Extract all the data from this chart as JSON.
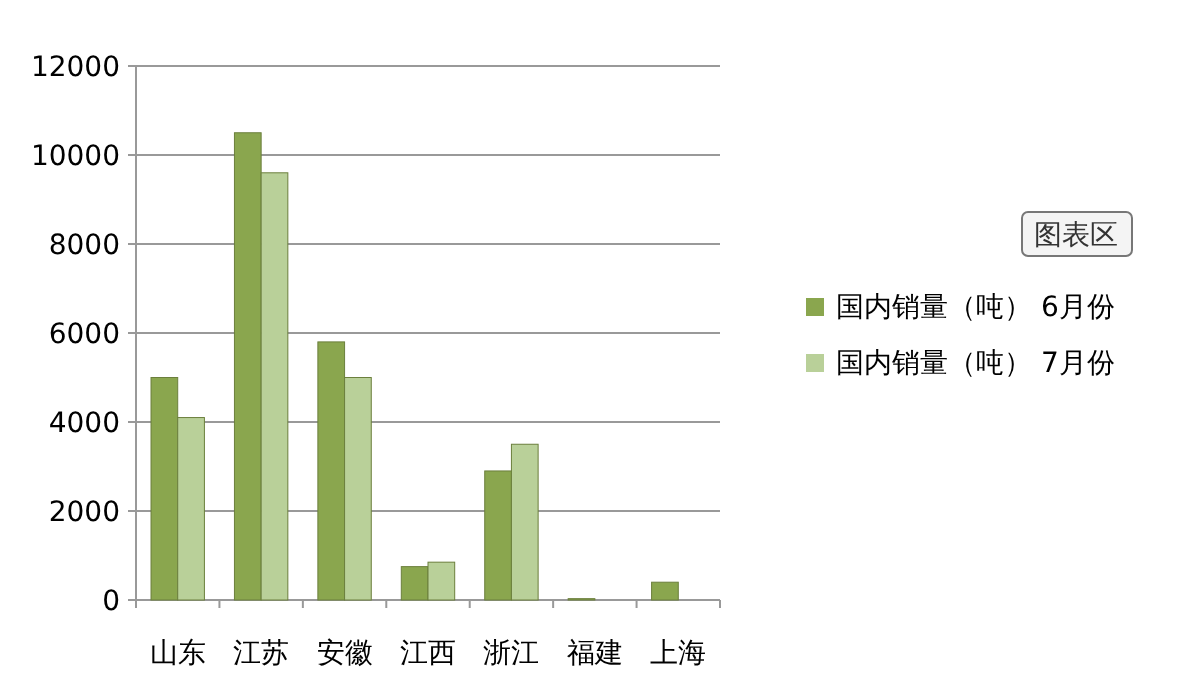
{
  "chart_data": {
    "type": "bar",
    "categories": [
      "山东",
      "江苏",
      "安徽",
      "江西",
      "浙江",
      "福建",
      "上海"
    ],
    "series": [
      {
        "name": "国内销量（吨） 6月份",
        "color": "#8aa64e",
        "values": [
          5000,
          10500,
          5800,
          750,
          2900,
          30,
          400
        ]
      },
      {
        "name": "国内销量（吨） 7月份",
        "color": "#b9d099",
        "values": [
          4100,
          9600,
          5000,
          850,
          3500,
          null,
          null
        ]
      }
    ],
    "ylim": [
      0,
      12000
    ],
    "yticks": [
      0,
      2000,
      4000,
      6000,
      8000,
      10000,
      12000
    ],
    "grid": "y",
    "legend": "right",
    "annotations": [
      "图表区"
    ]
  }
}
